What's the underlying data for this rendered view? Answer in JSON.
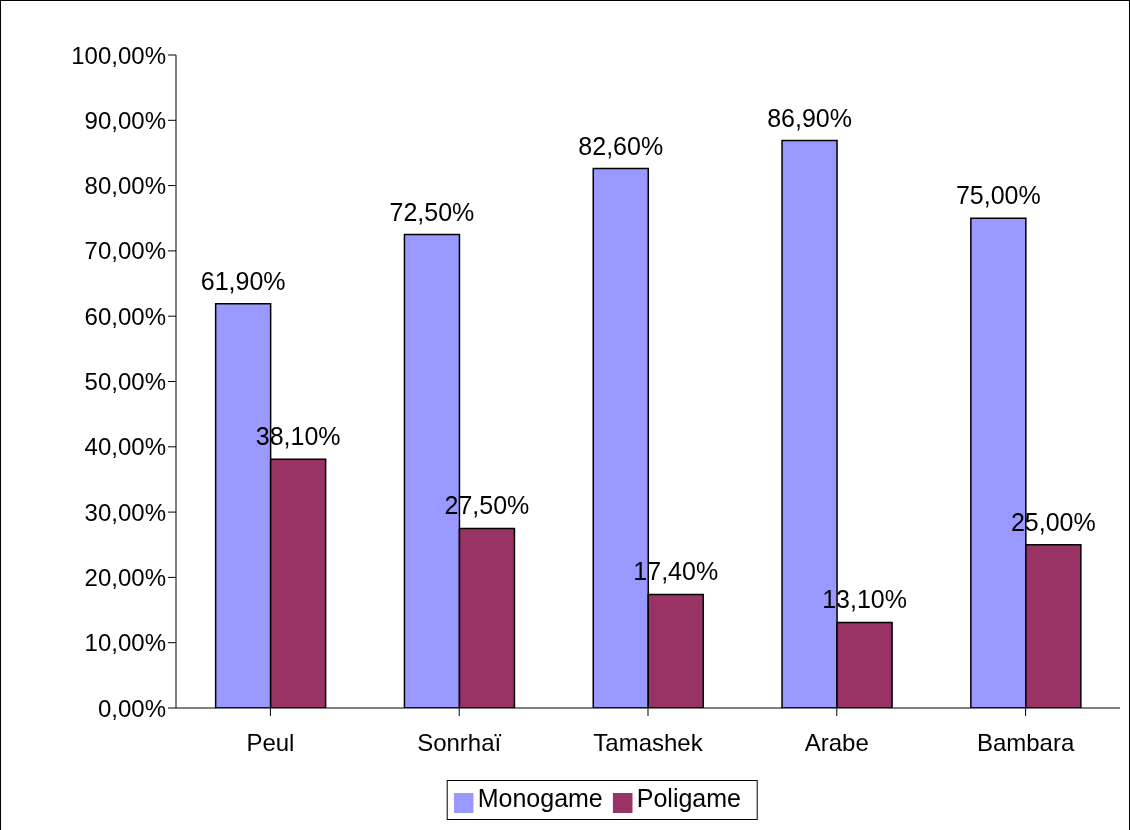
{
  "chart_data": {
    "type": "bar",
    "categories": [
      "Peul",
      "Sonrhaï",
      "Tamashek",
      "Arabe",
      "Bambara"
    ],
    "series": [
      {
        "name": "Monogame",
        "color": "#9999ff",
        "values": [
          61.9,
          72.5,
          82.6,
          86.9,
          75.0
        ],
        "value_labels": [
          "61,90%",
          "72,50%",
          "82,60%",
          "86,90%",
          "75,00%"
        ]
      },
      {
        "name": "Poligame",
        "color": "#993366",
        "values": [
          38.1,
          27.5,
          17.4,
          13.1,
          25.0
        ],
        "value_labels": [
          "38,10%",
          "27,50%",
          "17,40%",
          "13,10%",
          "25,00%"
        ]
      }
    ],
    "ylim": [
      0,
      100
    ],
    "yticks": [
      {
        "value": 0,
        "label": "0,00%"
      },
      {
        "value": 10,
        "label": "10,00%"
      },
      {
        "value": 20,
        "label": "20,00%"
      },
      {
        "value": 30,
        "label": "30,00%"
      },
      {
        "value": 40,
        "label": "40,00%"
      },
      {
        "value": 50,
        "label": "50,00%"
      },
      {
        "value": 60,
        "label": "60,00%"
      },
      {
        "value": 70,
        "label": "70,00%"
      },
      {
        "value": 80,
        "label": "80,00%"
      },
      {
        "value": 90,
        "label": "90,00%"
      },
      {
        "value": 100,
        "label": "100,00%"
      }
    ],
    "grid": false,
    "legend": "bottom"
  }
}
